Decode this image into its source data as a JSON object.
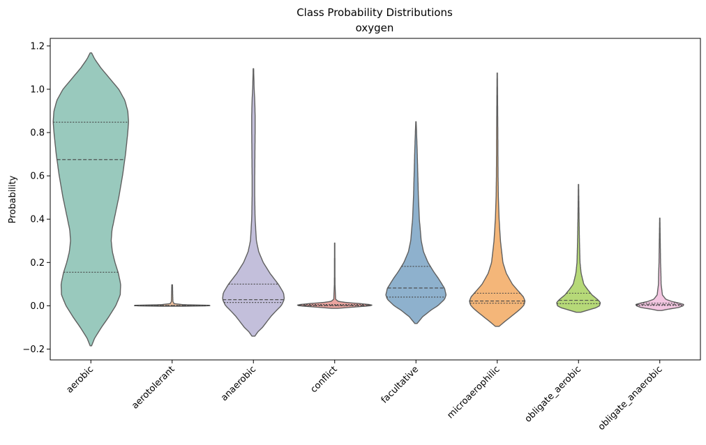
{
  "chart_data": {
    "type": "violin",
    "title": "Class Probability Distributions",
    "subtitle": "oxygen",
    "xlabel": "",
    "ylabel": "Probability",
    "ylim": [
      -0.25,
      1.235
    ],
    "yticks": [
      -0.2,
      0.0,
      0.2,
      0.4,
      0.6,
      0.8,
      1.0,
      1.2
    ],
    "ytick_labels": [
      "−0.2",
      "0.0",
      "0.2",
      "0.4",
      "0.6",
      "0.8",
      "1.0",
      "1.2"
    ],
    "grid": false,
    "categories": [
      "aerobic",
      "aerotolerant",
      "anaerobic",
      "conflict",
      "facultative",
      "microaerophilic",
      "obligate_aerobic",
      "obligate_anaerobic"
    ],
    "violins": [
      {
        "color": "#99c9bd",
        "min": -0.185,
        "max": 1.168,
        "q1": 0.155,
        "median": 0.675,
        "q3": 0.848,
        "profile": [
          [
            -0.185,
            0.02
          ],
          [
            -0.15,
            0.1
          ],
          [
            -0.1,
            0.28
          ],
          [
            -0.05,
            0.48
          ],
          [
            0.0,
            0.66
          ],
          [
            0.05,
            0.78
          ],
          [
            0.1,
            0.79
          ],
          [
            0.15,
            0.73
          ],
          [
            0.2,
            0.64
          ],
          [
            0.25,
            0.57
          ],
          [
            0.3,
            0.54
          ],
          [
            0.35,
            0.56
          ],
          [
            0.4,
            0.62
          ],
          [
            0.5,
            0.74
          ],
          [
            0.6,
            0.84
          ],
          [
            0.7,
            0.92
          ],
          [
            0.8,
            0.98
          ],
          [
            0.85,
            1.0
          ],
          [
            0.9,
            0.98
          ],
          [
            0.95,
            0.9
          ],
          [
            1.0,
            0.74
          ],
          [
            1.05,
            0.5
          ],
          [
            1.1,
            0.26
          ],
          [
            1.14,
            0.1
          ],
          [
            1.168,
            0.02
          ]
        ]
      },
      {
        "color": "#efc19f",
        "min": -0.002,
        "max": 0.097,
        "q1": 0.0,
        "median": 0.001,
        "q3": 0.002,
        "profile": [
          [
            -0.002,
            0.3
          ],
          [
            0.0,
            1.0
          ],
          [
            0.002,
            1.0
          ],
          [
            0.005,
            0.3
          ],
          [
            0.01,
            0.05
          ],
          [
            0.02,
            0.02
          ],
          [
            0.05,
            0.015
          ],
          [
            0.097,
            0.01
          ]
        ]
      },
      {
        "color": "#c3bfdb",
        "min": -0.14,
        "max": 1.095,
        "q1": 0.015,
        "median": 0.028,
        "q3": 0.1,
        "profile": [
          [
            -0.14,
            0.04
          ],
          [
            -0.12,
            0.12
          ],
          [
            -0.1,
            0.24
          ],
          [
            -0.05,
            0.46
          ],
          [
            -0.02,
            0.62
          ],
          [
            0.0,
            0.74
          ],
          [
            0.03,
            0.82
          ],
          [
            0.06,
            0.8
          ],
          [
            0.1,
            0.66
          ],
          [
            0.15,
            0.44
          ],
          [
            0.2,
            0.26
          ],
          [
            0.25,
            0.14
          ],
          [
            0.3,
            0.08
          ],
          [
            0.4,
            0.045
          ],
          [
            0.5,
            0.035
          ],
          [
            0.6,
            0.035
          ],
          [
            0.7,
            0.04
          ],
          [
            0.8,
            0.045
          ],
          [
            0.88,
            0.045
          ],
          [
            0.95,
            0.035
          ],
          [
            1.0,
            0.02
          ],
          [
            1.095,
            0.006
          ]
        ]
      },
      {
        "color": "#eba49f",
        "min": -0.012,
        "max": 0.29,
        "q1": 0.0,
        "median": 0.002,
        "q3": 0.006,
        "profile": [
          [
            -0.012,
            0.08
          ],
          [
            -0.006,
            0.5
          ],
          [
            0.0,
            0.95
          ],
          [
            0.004,
            1.0
          ],
          [
            0.01,
            0.7
          ],
          [
            0.015,
            0.3
          ],
          [
            0.02,
            0.1
          ],
          [
            0.03,
            0.025
          ],
          [
            0.1,
            0.008
          ],
          [
            0.2,
            0.006
          ],
          [
            0.29,
            0.004
          ]
        ]
      },
      {
        "color": "#8eb1cd",
        "min": -0.082,
        "max": 0.85,
        "q1": 0.04,
        "median": 0.082,
        "q3": 0.182,
        "profile": [
          [
            -0.082,
            0.03
          ],
          [
            -0.05,
            0.18
          ],
          [
            -0.02,
            0.4
          ],
          [
            0.0,
            0.58
          ],
          [
            0.03,
            0.76
          ],
          [
            0.05,
            0.8
          ],
          [
            0.08,
            0.76
          ],
          [
            0.12,
            0.62
          ],
          [
            0.16,
            0.46
          ],
          [
            0.2,
            0.32
          ],
          [
            0.25,
            0.2
          ],
          [
            0.3,
            0.14
          ],
          [
            0.4,
            0.09
          ],
          [
            0.5,
            0.065
          ],
          [
            0.6,
            0.05
          ],
          [
            0.7,
            0.035
          ],
          [
            0.78,
            0.02
          ],
          [
            0.85,
            0.005
          ]
        ]
      },
      {
        "color": "#f4b679",
        "min": -0.095,
        "max": 1.075,
        "q1": 0.012,
        "median": 0.022,
        "q3": 0.058,
        "profile": [
          [
            -0.095,
            0.05
          ],
          [
            -0.07,
            0.22
          ],
          [
            -0.04,
            0.44
          ],
          [
            -0.02,
            0.58
          ],
          [
            0.0,
            0.7
          ],
          [
            0.02,
            0.74
          ],
          [
            0.04,
            0.7
          ],
          [
            0.07,
            0.55
          ],
          [
            0.1,
            0.4
          ],
          [
            0.15,
            0.24
          ],
          [
            0.2,
            0.15
          ],
          [
            0.3,
            0.085
          ],
          [
            0.4,
            0.05
          ],
          [
            0.5,
            0.03
          ],
          [
            0.6,
            0.022
          ],
          [
            0.7,
            0.018
          ],
          [
            0.8,
            0.016
          ],
          [
            0.9,
            0.012
          ],
          [
            1.0,
            0.008
          ],
          [
            1.075,
            0.004
          ]
        ]
      },
      {
        "color": "#b6d978",
        "min": -0.03,
        "max": 0.56,
        "q1": 0.01,
        "median": 0.025,
        "q3": 0.058,
        "profile": [
          [
            -0.03,
            0.06
          ],
          [
            -0.02,
            0.25
          ],
          [
            -0.01,
            0.45
          ],
          [
            0.0,
            0.56
          ],
          [
            0.015,
            0.58
          ],
          [
            0.03,
            0.5
          ],
          [
            0.05,
            0.36
          ],
          [
            0.08,
            0.22
          ],
          [
            0.1,
            0.14
          ],
          [
            0.15,
            0.07
          ],
          [
            0.2,
            0.04
          ],
          [
            0.3,
            0.025
          ],
          [
            0.4,
            0.015
          ],
          [
            0.5,
            0.008
          ],
          [
            0.56,
            0.004
          ]
        ]
      },
      {
        "color": "#f3c6e1",
        "min": -0.022,
        "max": 0.405,
        "q1": 0.002,
        "median": 0.005,
        "q3": 0.012,
        "profile": [
          [
            -0.022,
            0.05
          ],
          [
            -0.015,
            0.25
          ],
          [
            -0.008,
            0.5
          ],
          [
            0.0,
            0.62
          ],
          [
            0.006,
            0.64
          ],
          [
            0.012,
            0.52
          ],
          [
            0.02,
            0.32
          ],
          [
            0.03,
            0.16
          ],
          [
            0.05,
            0.07
          ],
          [
            0.1,
            0.035
          ],
          [
            0.15,
            0.03
          ],
          [
            0.2,
            0.02
          ],
          [
            0.3,
            0.012
          ],
          [
            0.405,
            0.004
          ]
        ]
      }
    ]
  }
}
